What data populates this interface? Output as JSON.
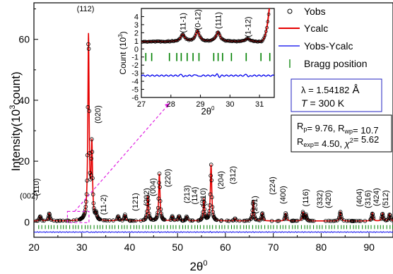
{
  "chart_data": {
    "type": "scatter",
    "xlabel": "2θ",
    "xlabel_sup": "0",
    "ylabel": "Intensity(10",
    "ylabel_sup": "3",
    "ylabel_end": "count)",
    "xlim": [
      20,
      95
    ],
    "ylim": [
      -5,
      72
    ],
    "x_ticks": [
      20,
      30,
      40,
      50,
      60,
      70,
      80,
      90
    ],
    "y_ticks": [
      0,
      20,
      40,
      60
    ],
    "peaks": [
      {
        "x": 21.3,
        "h": 1.5,
        "label": "(002)"
      },
      {
        "x": 23.2,
        "h": 2.5,
        "label": "(110)"
      },
      {
        "x": 31.4,
        "h": 60.5,
        "label": "(112)"
      },
      {
        "x": 32.1,
        "h": 24,
        "label": "(020)"
      },
      {
        "x": 33.0,
        "h": 1.8,
        "label": "(11-2)"
      },
      {
        "x": 37.6,
        "h": 1.5,
        "label": "(121)"
      },
      {
        "x": 39.0,
        "h": 2.0,
        "label": "(202)"
      },
      {
        "x": 43.8,
        "h": 8.0,
        "label": "(004)"
      },
      {
        "x": 46.2,
        "h": 15.5,
        "label": "(220)"
      },
      {
        "x": 48.9,
        "h": 1.5,
        "label": "(213)"
      },
      {
        "x": 50.3,
        "h": 1.6,
        "label": "(114)"
      },
      {
        "x": 51.9,
        "h": 1.4,
        "label": "(310)"
      },
      {
        "x": 55.5,
        "h": 7.0,
        "label": "(204)"
      },
      {
        "x": 57.0,
        "h": 18.5,
        "label": "(312)"
      },
      {
        "x": 62.0,
        "h": 0.8,
        "label": "(231)"
      },
      {
        "x": 65.8,
        "h": 6.5,
        "label": "(224)"
      },
      {
        "x": 67.7,
        "h": 2.5,
        "label": "(400)"
      },
      {
        "x": 72.6,
        "h": 2.5,
        "label": "(116)"
      },
      {
        "x": 76.2,
        "h": 2.8,
        "label": "(332)"
      },
      {
        "x": 76.8,
        "h": 2.0,
        "label": "(420)"
      },
      {
        "x": 84.0,
        "h": 3.0,
        "label": "(404)"
      },
      {
        "x": 90.7,
        "h": 2.5,
        "label": "(316)"
      },
      {
        "x": 92.8,
        "h": 2.4,
        "label": "(424)"
      },
      {
        "x": 94.3,
        "h": 2.2,
        "label": "(512)"
      }
    ],
    "legend": [
      "Yobs",
      "Ycalc",
      "Yobs-Ycalc",
      "Bragg position"
    ],
    "series_colors": {
      "obs": "#000000",
      "calc": "#e60000",
      "diff": "#0000ee",
      "bragg": "#008000",
      "arrow": "#e020e0"
    },
    "wavelength_box": {
      "lambda_label": "λ = ",
      "lambda_value": "1.54182",
      "lambda_unit": " Å",
      "temp_label": "T",
      "temp_value": " = 300 K"
    },
    "rfactor_box": {
      "line1": [
        {
          "t": "R"
        },
        {
          "t": "p",
          "sub": true
        },
        {
          "t": "= 9.76, R"
        },
        {
          "t": "wp",
          "sub": true
        },
        {
          "t": "= 10.7"
        }
      ],
      "line2": [
        {
          "t": "R"
        },
        {
          "t": "exp",
          "sub": true
        },
        {
          "t": "= 4.50, "
        },
        {
          "t": "χ",
          "italic": true
        },
        {
          "t": "2",
          "sup": true
        },
        {
          "t": "= 5.62"
        }
      ]
    },
    "inset": {
      "xlim": [
        27,
        31.5
      ],
      "ylim": [
        -6,
        5
      ],
      "x_ticks": [
        27,
        28,
        29,
        30,
        31
      ],
      "y_ticks": [
        -6,
        -5,
        -4,
        -3,
        -2,
        -1,
        0,
        1,
        2,
        3,
        4
      ],
      "xlabel": "2θ",
      "xlabel_sup": "0",
      "ylabel": "Count (10",
      "ylabel_sup": "3",
      "ylabel_end": ")",
      "peaks": [
        {
          "x": 28.4,
          "h": 0.9,
          "label": "(11-1)"
        },
        {
          "x": 28.9,
          "h": 1.3,
          "label": "(0-12)"
        },
        {
          "x": 29.6,
          "h": 1.2,
          "label": "(111)"
        },
        {
          "x": 30.6,
          "h": 0.4,
          "label": "(1-12)"
        }
      ],
      "baseline": 0.9,
      "diff_level": -3.3
    }
  }
}
